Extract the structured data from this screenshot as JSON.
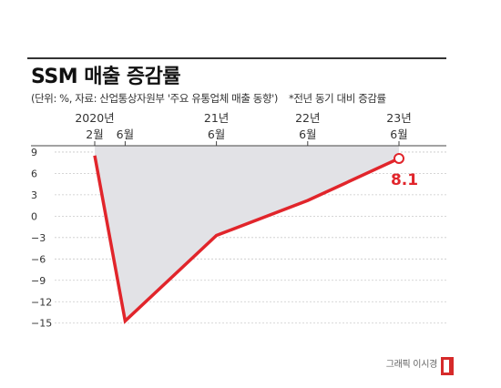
{
  "title": "SSM 매출 증감률",
  "subtitle": "(단위: %, 자료: 산업통상자원부 '주요 유통업체 매출 동향')",
  "note": "*전년 동기 대비 증감률",
  "credit": "그래픽 이시경",
  "colors": {
    "line": "#e1252b",
    "fill": "#e2e2e6",
    "axis": "#444444",
    "text": "#333333"
  },
  "chart_data": {
    "type": "area",
    "x_ticks": [
      {
        "x": 0,
        "top": "2020년",
        "bottom": "2월"
      },
      {
        "x": 4,
        "top": "",
        "bottom": "6월"
      },
      {
        "x": 16,
        "top": "21년",
        "bottom": "6월"
      },
      {
        "x": 28,
        "top": "22년",
        "bottom": "6월"
      },
      {
        "x": 40,
        "top": "23년",
        "bottom": "6월"
      }
    ],
    "y_ticks": [
      9,
      6,
      3,
      0,
      -3,
      -6,
      -9,
      -12,
      -15
    ],
    "ylim": [
      -15.8,
      9.5
    ],
    "xlim": [
      0,
      40
    ],
    "points": [
      {
        "x": 0,
        "y": 8.5
      },
      {
        "x": 4,
        "y": -14.7
      },
      {
        "x": 16,
        "y": -2.7
      },
      {
        "x": 28,
        "y": 2.2
      },
      {
        "x": 40,
        "y": 8.1
      }
    ],
    "last_label": "8.1"
  }
}
